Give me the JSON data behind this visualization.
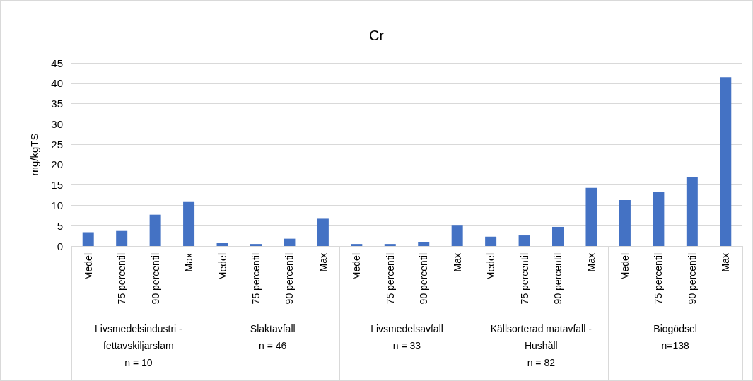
{
  "chart_data": {
    "type": "bar",
    "title": "Cr",
    "ylabel": "mg/kgTS",
    "categories": [
      "Medel",
      "75 percentil",
      "90 percentil",
      "Max",
      "Medel",
      "75 percentil",
      "90 percentil",
      "Max",
      "Medel",
      "75 percentil",
      "90 percentil",
      "Max",
      "Medel",
      "75 percentil",
      "90 percentil",
      "Max",
      "Medel",
      "75 percentil",
      "90 percentil",
      "Max"
    ],
    "values": [
      3.4,
      3.7,
      7.7,
      10.8,
      0.7,
      0.5,
      1.8,
      6.7,
      0.5,
      0.5,
      1.0,
      5.0,
      2.3,
      2.6,
      4.7,
      14.3,
      11.3,
      13.3,
      16.9,
      41.5
    ],
    "color": "#4472c4",
    "ylim": [
      0,
      45
    ],
    "yticks": [
      0,
      5,
      10,
      15,
      20,
      25,
      30,
      35,
      40,
      45
    ],
    "grid": "y",
    "annotations": [
      "Livsmedelsindustri -\nfettavskiljarslam\nn = 10",
      "Slaktavfall\nn = 46",
      "Livsmedelsavfall\nn = 33",
      "Källsorterad matavfall -\nHushåll\nn = 82",
      "Biogödsel\nn=138"
    ]
  }
}
